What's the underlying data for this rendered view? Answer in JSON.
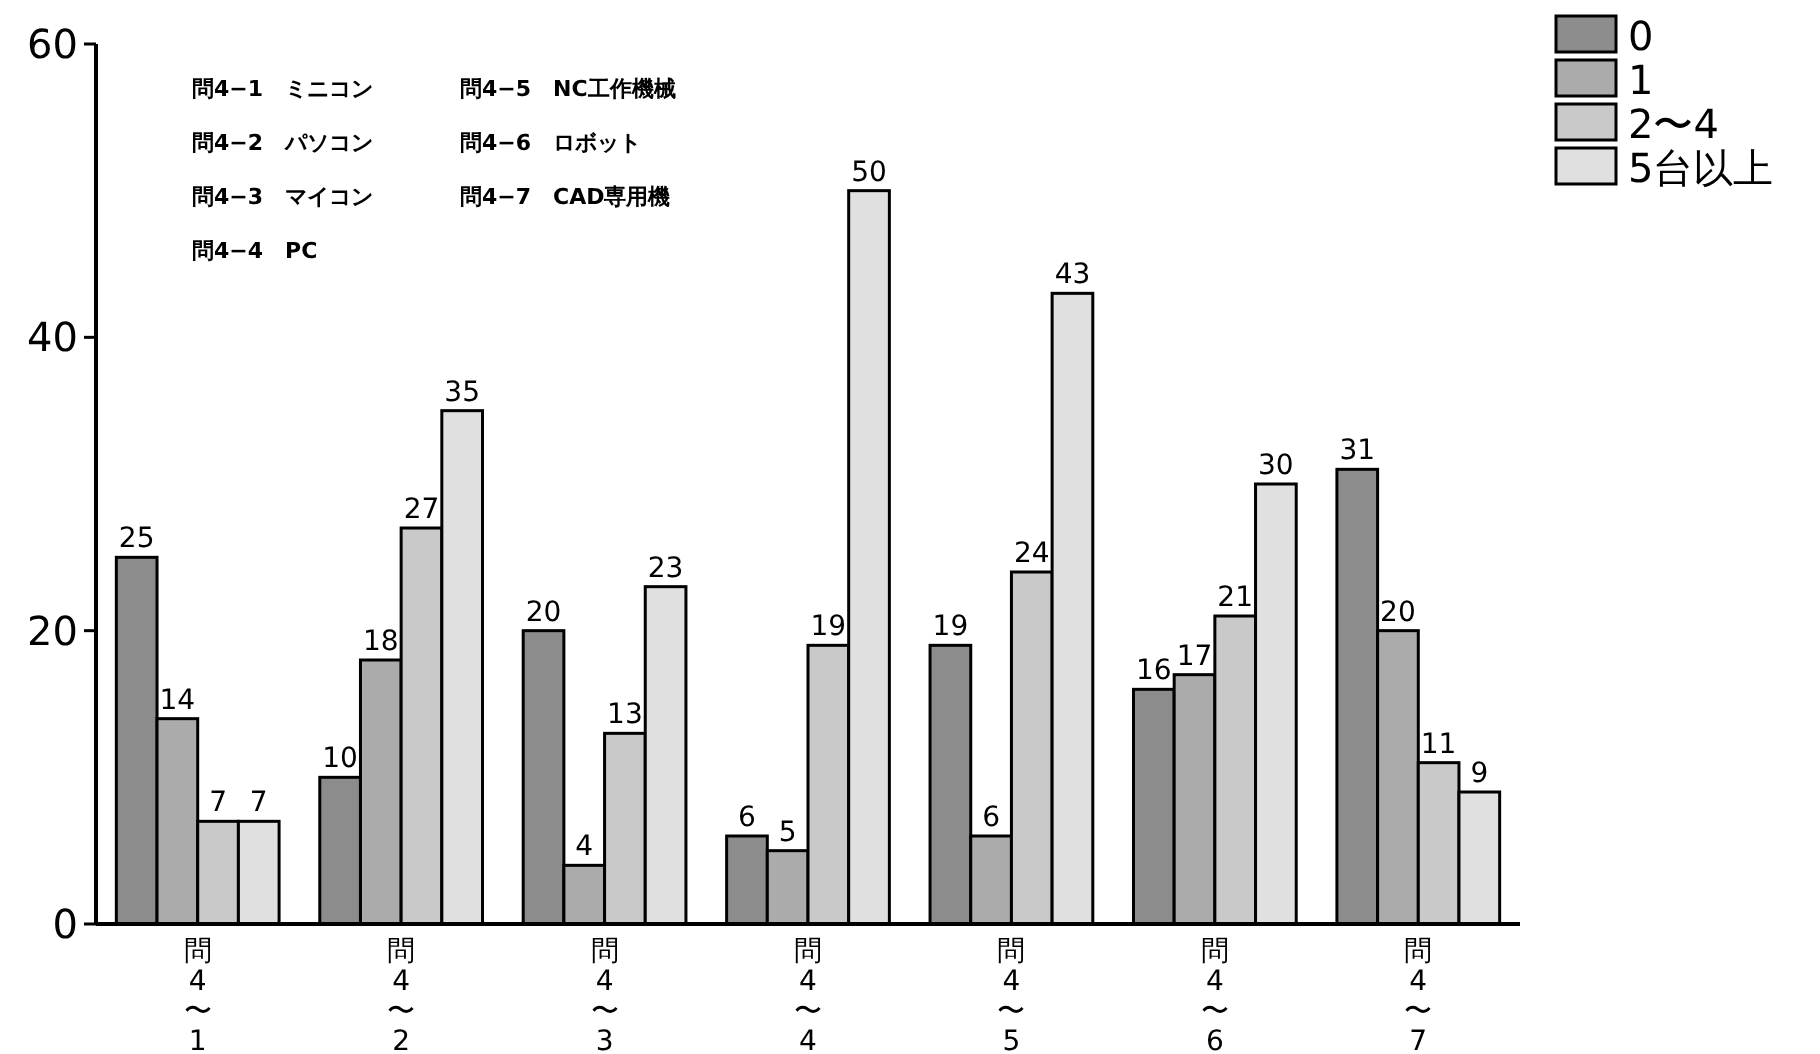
{
  "chart_data": {
    "type": "bar",
    "categories": [
      "問4〜1",
      "問4〜2",
      "問4〜3",
      "問4〜4",
      "問4〜5",
      "問4〜6",
      "問4〜7"
    ],
    "series": [
      {
        "name": "0",
        "color": "#8c8c8c",
        "values": [
          25,
          10,
          20,
          6,
          19,
          16,
          31
        ]
      },
      {
        "name": "1",
        "color": "#ababab",
        "values": [
          14,
          18,
          4,
          5,
          6,
          17,
          20
        ]
      },
      {
        "name": "2〜4",
        "color": "#c9c9c9",
        "values": [
          7,
          27,
          13,
          19,
          24,
          21,
          11
        ]
      },
      {
        "name": "5台以上",
        "color": "#e0e0e0",
        "values": [
          7,
          35,
          23,
          50,
          43,
          30,
          9
        ]
      }
    ],
    "ylim": [
      0,
      60
    ],
    "yticks": [
      0,
      20,
      40,
      60
    ],
    "data_labels": true,
    "legend": "top right",
    "grid": false,
    "annotations": [
      "問4−1　ミニコン",
      "問4−2　パソコン",
      "問4−3　マイコン",
      "問4−4　PC",
      "問4−5　NC工作機械",
      "問4−6　ロボット",
      "問4−7　CAD専用機"
    ]
  }
}
